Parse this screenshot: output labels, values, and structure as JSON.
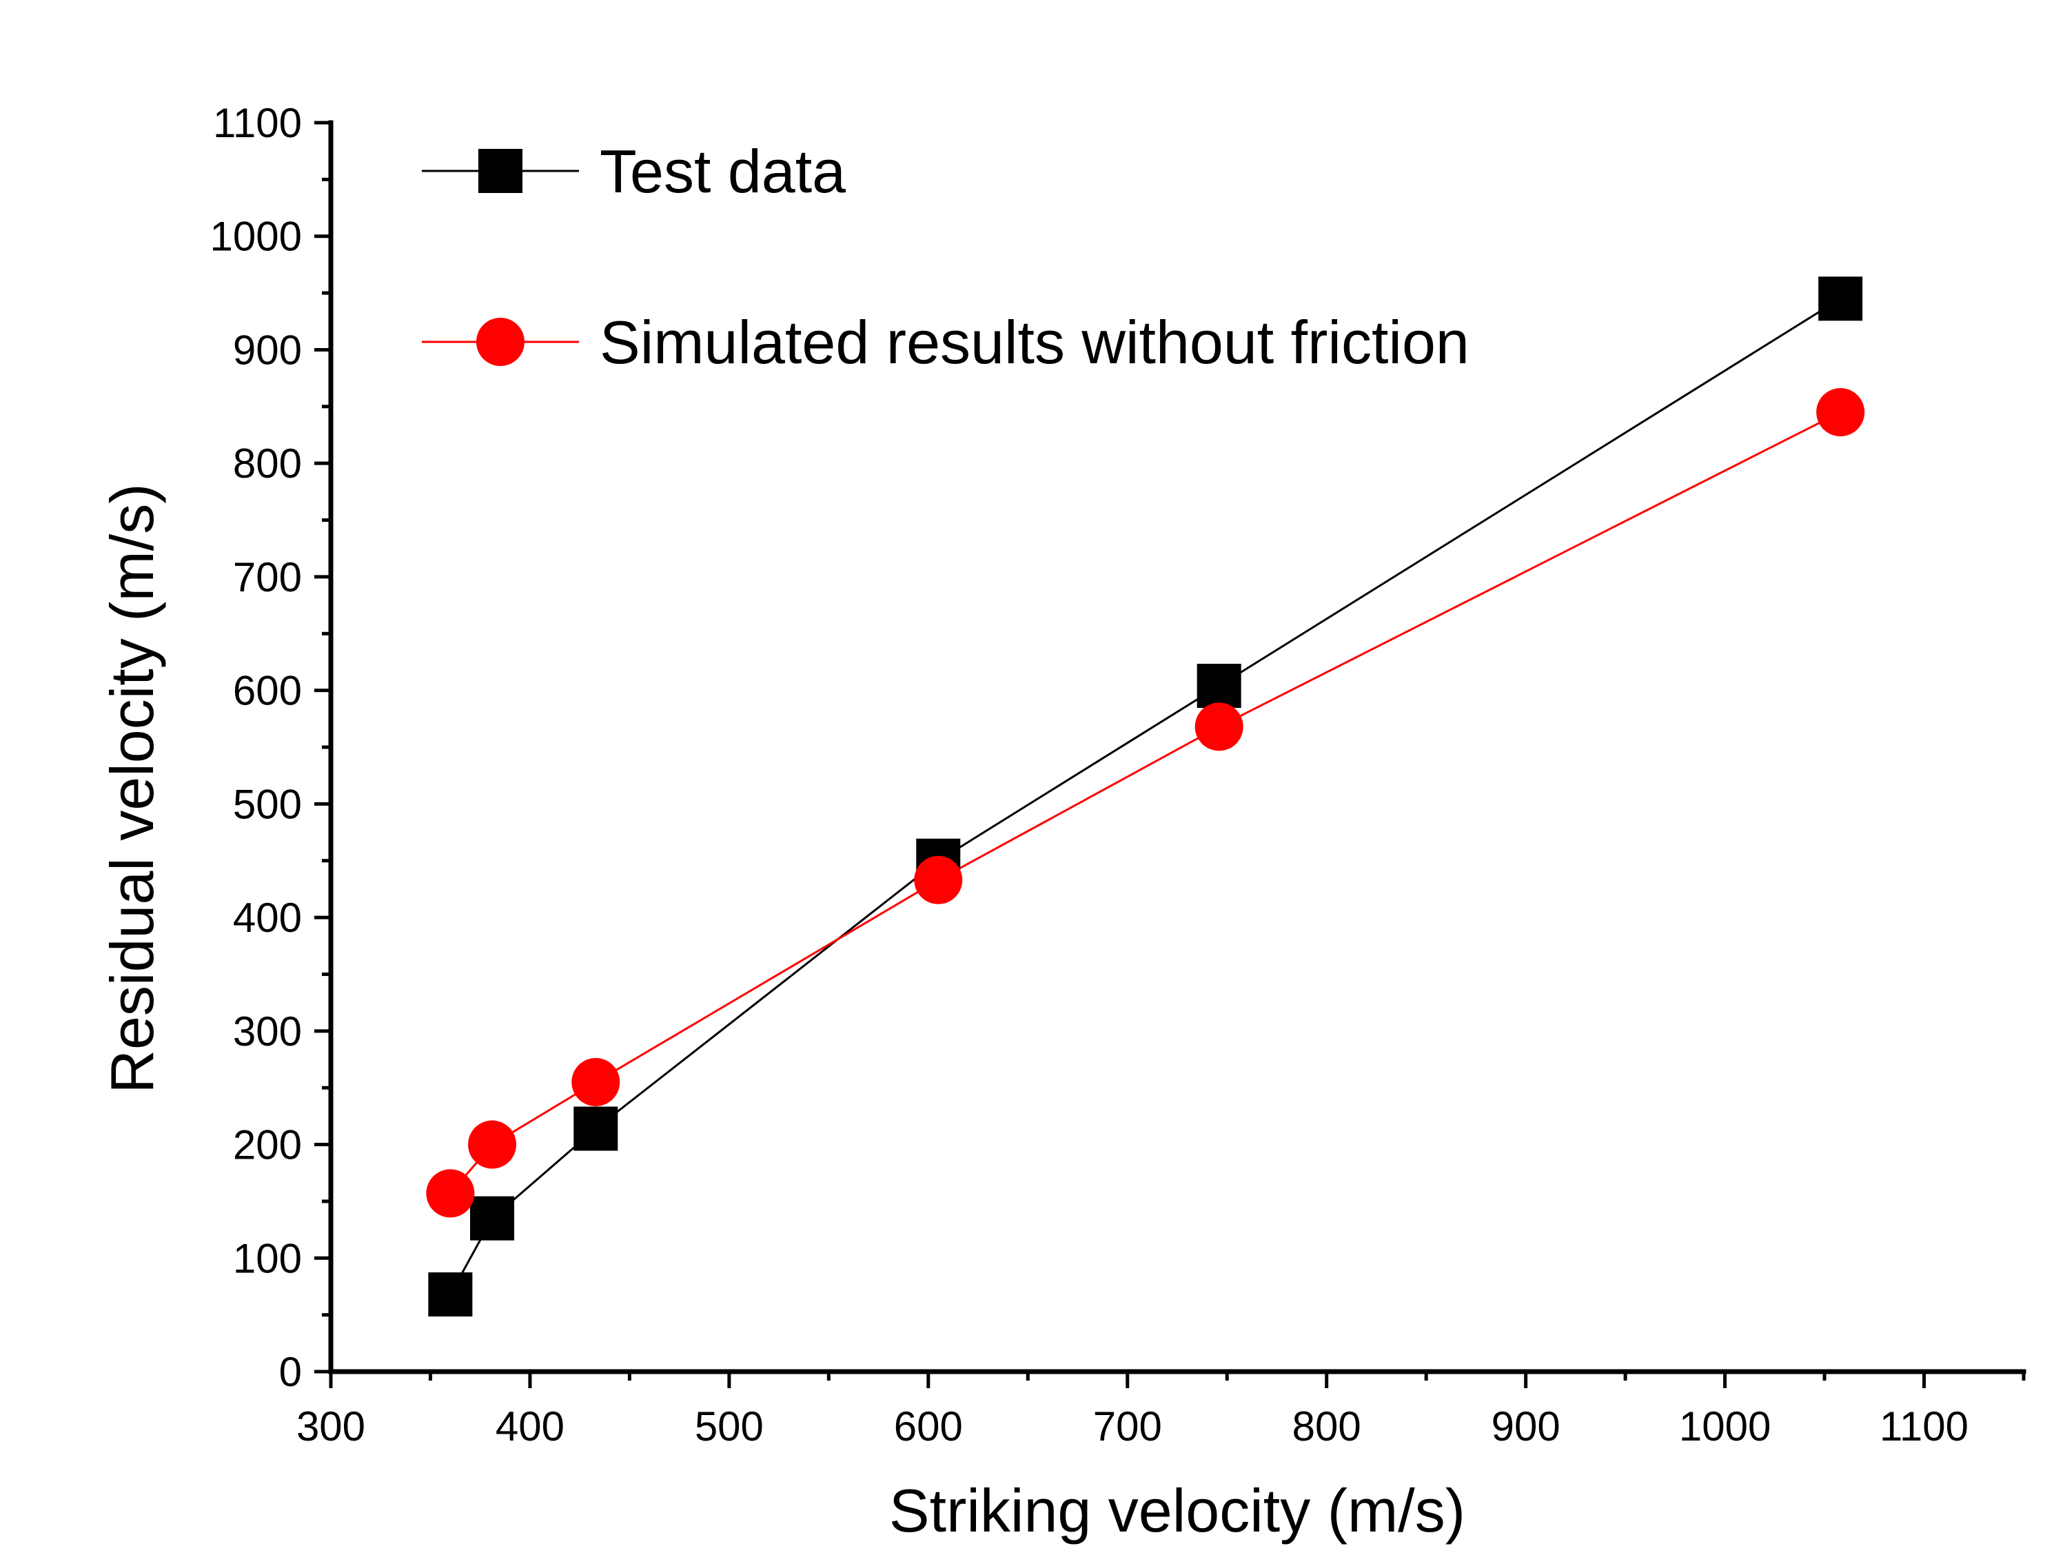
{
  "chart_data": {
    "type": "line",
    "title": "",
    "xlabel": "Striking velocity (m/s)",
    "ylabel": "Residual velocity (m/s)",
    "xlim": [
      300,
      1150
    ],
    "ylim": [
      0,
      1100
    ],
    "xticks": [
      300,
      400,
      500,
      600,
      700,
      800,
      900,
      1000,
      1100
    ],
    "yticks": [
      0,
      100,
      200,
      300,
      400,
      500,
      600,
      700,
      800,
      900,
      1000,
      1100
    ],
    "grid": false,
    "legend_position": "top-left",
    "series": [
      {
        "name": "Test data",
        "marker": "square",
        "color": "#000000",
        "x": [
          360,
          381,
          433,
          605,
          746,
          1058
        ],
        "y": [
          68,
          135,
          214,
          450,
          604,
          945
        ]
      },
      {
        "name": "Simulated results without friction",
        "marker": "circle",
        "color": "#ff0000",
        "x": [
          360,
          381,
          433,
          605,
          746,
          1058
        ],
        "y": [
          157,
          200,
          255,
          433,
          568,
          845
        ]
      }
    ]
  }
}
